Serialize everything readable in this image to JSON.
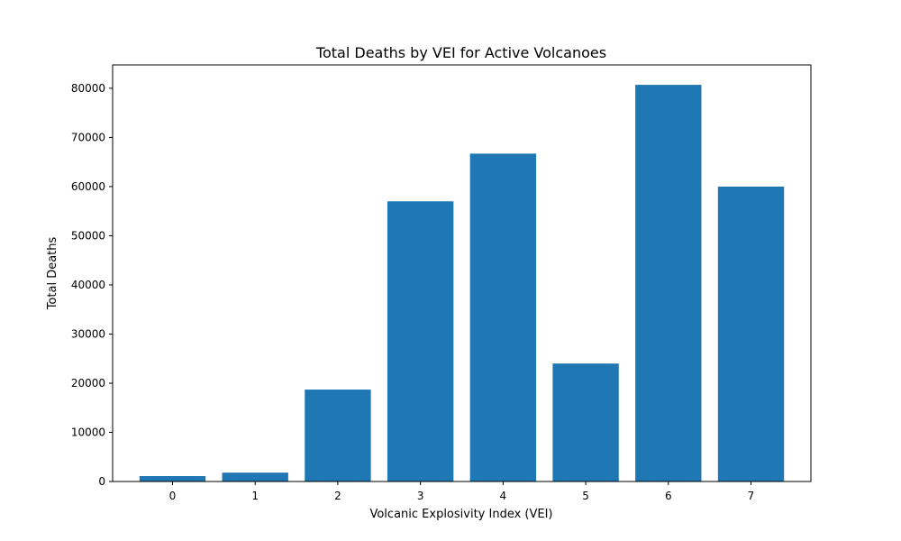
{
  "chart_data": {
    "type": "bar",
    "title": "Total Deaths by VEI for Active Volcanoes",
    "xlabel": "Volcanic Explosivity Index (VEI)",
    "ylabel": "Total Deaths",
    "categories": [
      "0",
      "1",
      "2",
      "3",
      "4",
      "5",
      "6",
      "7"
    ],
    "values": [
      1100,
      1800,
      18700,
      57000,
      66700,
      24000,
      80700,
      60000
    ],
    "ylim": [
      0,
      84750
    ],
    "yticks": [
      0,
      10000,
      20000,
      30000,
      40000,
      50000,
      60000,
      70000,
      80000
    ],
    "ytick_labels": [
      "0",
      "10000",
      "20000",
      "30000",
      "40000",
      "50000",
      "60000",
      "70000",
      "80000"
    ],
    "bar_color": "#1f77b4",
    "grid": false,
    "legend": false
  }
}
